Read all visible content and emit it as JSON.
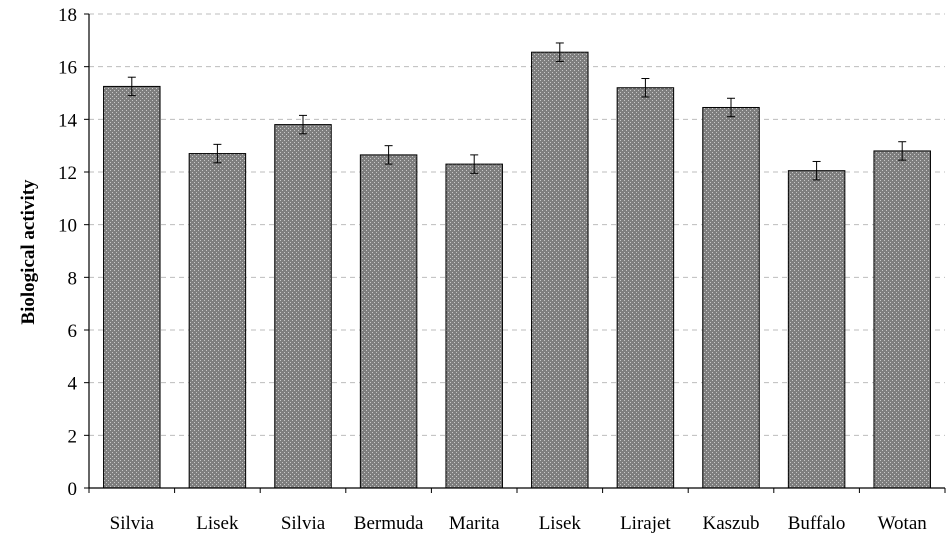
{
  "chart_data": {
    "type": "bar",
    "title": "",
    "xlabel": "",
    "ylabel": "Biological activity",
    "categories": [
      "Silvia",
      "Lisek",
      "Silvia",
      "Bermuda",
      "Marita",
      "Lisek",
      "Lirajet",
      "Kaszub",
      "Buffalo",
      "Wotan"
    ],
    "values": [
      15.25,
      12.7,
      13.8,
      12.65,
      12.3,
      16.55,
      15.2,
      14.45,
      12.05,
      12.8
    ],
    "errors": [
      0.35,
      0.35,
      0.35,
      0.35,
      0.35,
      0.35,
      0.35,
      0.35,
      0.35,
      0.35
    ],
    "ylim": [
      0,
      18
    ],
    "yticks": [
      0,
      2,
      4,
      6,
      8,
      10,
      12,
      14,
      16,
      18
    ],
    "grid": true,
    "bar_color": "#8a8a8a",
    "grid_color": "#bdbdbd"
  }
}
